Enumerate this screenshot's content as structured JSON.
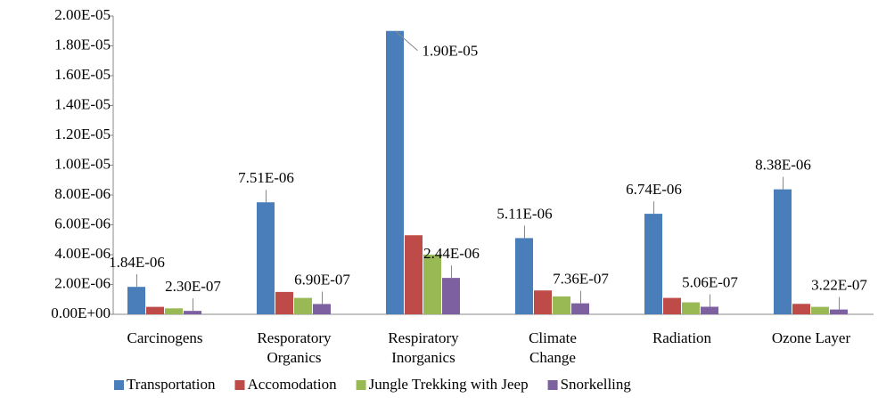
{
  "chart_data": {
    "type": "bar",
    "categories": [
      "Carcinogens",
      "Resporatory Organics",
      "Respiratory Inorganics",
      "Climate Change",
      "Radiation",
      "Ozone Layer"
    ],
    "series": [
      {
        "name": "Transportation",
        "color": "#4a7ebb",
        "values": [
          1.84e-06,
          7.51e-06,
          1.9e-05,
          5.11e-06,
          6.74e-06,
          8.38e-06
        ],
        "value_labels": [
          "1.84E-06",
          "7.51E-06",
          "1.90E-05",
          "5.11E-06",
          "6.74E-06",
          "8.38E-06"
        ]
      },
      {
        "name": "Accomodation",
        "color": "#be4b48",
        "values": [
          5e-07,
          1.5e-06,
          5.3e-06,
          1.6e-06,
          1.1e-06,
          7e-07
        ]
      },
      {
        "name": "Jungle Trekking with Jeep",
        "color": "#98b954",
        "values": [
          4e-07,
          1.1e-06,
          4e-06,
          1.2e-06,
          8e-07,
          5e-07
        ]
      },
      {
        "name": "Snorkelling",
        "color": "#7d60a0",
        "values": [
          2.3e-07,
          6.9e-07,
          2.44e-06,
          7.36e-07,
          5.06e-07,
          3.22e-07
        ],
        "value_labels": [
          "2.30E-07",
          "6.90E-07",
          "2.44E-06",
          "7.36E-07",
          "5.06E-07",
          "3.22E-07"
        ]
      }
    ],
    "ylim": [
      0,
      2e-05
    ],
    "yticks": [
      {
        "value": 0,
        "label": "0.00E+00"
      },
      {
        "value": 2e-06,
        "label": "2.00E-06"
      },
      {
        "value": 4e-06,
        "label": "4.00E-06"
      },
      {
        "value": 6e-06,
        "label": "6.00E-06"
      },
      {
        "value": 8e-06,
        "label": "8.00E-06"
      },
      {
        "value": 1e-05,
        "label": "1.00E-05"
      },
      {
        "value": 1.2e-05,
        "label": "1.20E-05"
      },
      {
        "value": 1.4e-05,
        "label": "1.40E-05"
      },
      {
        "value": 1.6e-05,
        "label": "1.60E-05"
      },
      {
        "value": 1.8e-05,
        "label": "1.80E-05"
      },
      {
        "value": 2e-05,
        "label": "2.00E-05"
      }
    ],
    "legend": "bottom"
  }
}
